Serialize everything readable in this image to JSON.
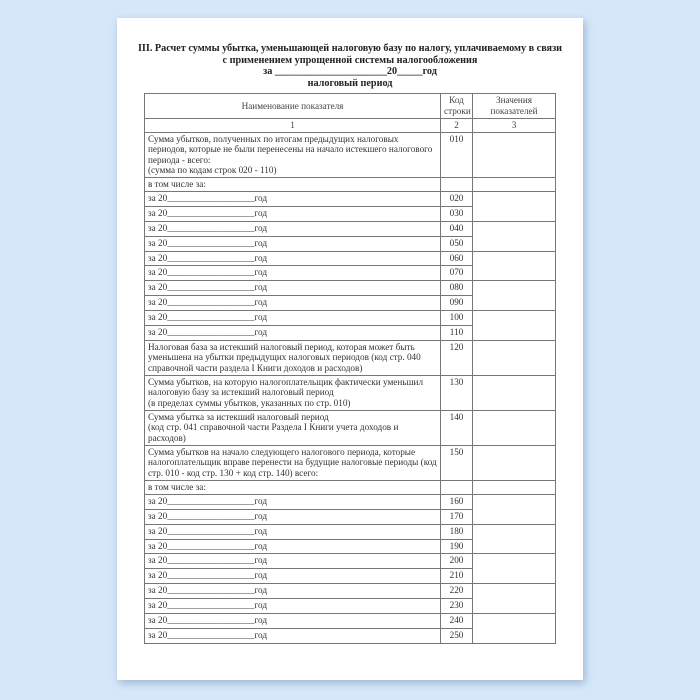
{
  "title": {
    "line1": "III. Расчет суммы убытка, уменьшающей налоговую базу по налогу, уплачиваемому в связи",
    "line2": "с применением упрощенной системы налогообложения",
    "line3": "за ______________________20_____год",
    "line4": "налоговый период"
  },
  "table": {
    "headers": [
      "Наименование показателя",
      "Код строки",
      "Значения показателей"
    ],
    "column_numbers": [
      "1",
      "2",
      "3"
    ],
    "row_010": {
      "label": "Сумма убытков, полученных по итогам предыдущих налоговых периодов, которые не были перенесены на начало истекшего налогового периода - всего:",
      "label2": "(сумма по кодам строк 020 - 110)",
      "code": "010"
    },
    "including_1": "в том числе за:",
    "year_label": "за 20___________________год",
    "years_1": [
      "020",
      "030",
      "040",
      "050",
      "060",
      "070",
      "080",
      "090",
      "100",
      "110"
    ],
    "row_120": {
      "label": "Налоговая база за истекший налоговый период, которая может быть уменьшена на убытки предыдущих налоговых периодов (код стр. 040 справочной части раздела I Книги доходов и расходов)",
      "code": "120"
    },
    "row_130": {
      "label": "Сумма убытков, на которую налогоплательщик фактически уменьшил налоговую базу за истекший налоговый период",
      "label2": "(в пределах суммы убытков, указанных по стр. 010)",
      "code": "130"
    },
    "row_140": {
      "label": "Сумма убытка за истекший налоговый период",
      "label2": "(код стр. 041 справочной части Раздела I Книги учета доходов и расходов)",
      "code": "140"
    },
    "row_150": {
      "label": "Сумма убытков на начало следующего налогового периода, которые налогоплательщик вправе перенести на будущие налоговые периоды (код стр. 010 - код стр. 130 + код стр. 140) всего:",
      "code": "150"
    },
    "including_2": "в том числе за:",
    "years_2": [
      "160",
      "170",
      "180",
      "190",
      "200",
      "210",
      "220",
      "230",
      "240",
      "250"
    ]
  }
}
